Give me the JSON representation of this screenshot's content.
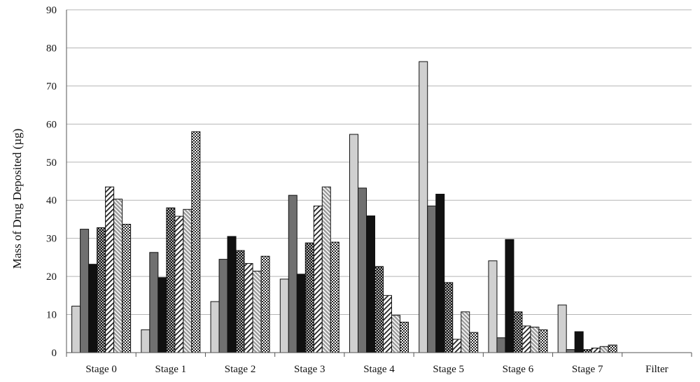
{
  "chart_data": {
    "type": "bar",
    "title": "",
    "xlabel": "",
    "ylabel": "Mass of Drug Deposited (µg)",
    "ylim": [
      0,
      90
    ],
    "yticks": [
      0,
      10,
      20,
      30,
      40,
      50,
      60,
      70,
      80,
      90
    ],
    "grid": true,
    "legend": "none",
    "categories": [
      "Stage 0",
      "Stage 1",
      "Stage 2",
      "Stage 3",
      "Stage 4",
      "Stage 5",
      "Stage 6",
      "Stage 7",
      "Filter"
    ],
    "series": [
      {
        "fill": "#d0d0d0",
        "pattern": "solid",
        "values": [
          12.2,
          6.0,
          13.4,
          19.3,
          57.3,
          76.4,
          24.1,
          12.5,
          0
        ]
      },
      {
        "fill": "#707070",
        "pattern": "solid",
        "values": [
          32.4,
          26.3,
          24.5,
          41.3,
          43.2,
          38.5,
          3.9,
          0.8,
          0
        ]
      },
      {
        "fill": "#111111",
        "pattern": "solid",
        "values": [
          23.2,
          19.7,
          30.5,
          20.6,
          35.9,
          41.6,
          29.7,
          5.5,
          0
        ]
      },
      {
        "fill": "#2a2a2a",
        "pattern": "dots",
        "values": [
          32.8,
          38.0,
          26.8,
          28.8,
          22.6,
          18.4,
          10.7,
          0.8,
          0
        ]
      },
      {
        "fill": "#ffffff",
        "pattern": "diagonal",
        "values": [
          43.5,
          35.8,
          23.4,
          38.5,
          15.0,
          3.5,
          7.0,
          1.2,
          0
        ]
      },
      {
        "fill": "#ffffff",
        "pattern": "hatch",
        "values": [
          40.3,
          37.6,
          21.4,
          43.5,
          9.8,
          10.7,
          6.7,
          1.6,
          0
        ]
      },
      {
        "fill": "#ffffff",
        "pattern": "check",
        "values": [
          33.7,
          58.0,
          25.3,
          29.0,
          8.0,
          5.3,
          6.0,
          2.0,
          0
        ]
      }
    ]
  }
}
